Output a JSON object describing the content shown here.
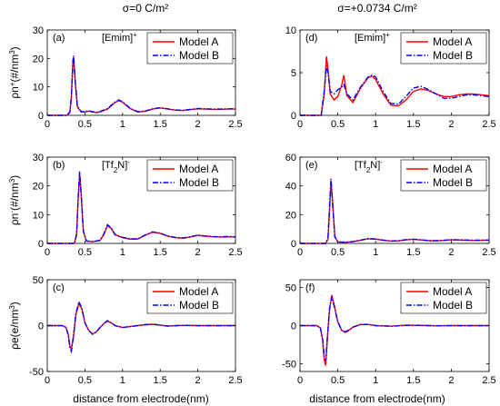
{
  "figure": {
    "column_titles": [
      "σ=0 C/m²",
      "σ=+0.0734 C/m²"
    ],
    "xlabel": "distance from electrode(nm)",
    "legend": [
      "Model A",
      "Model B"
    ],
    "colors": {
      "model_a": "#ff0000",
      "model_b": "#0000ff",
      "axes": "#000000"
    }
  },
  "chart_data": [
    {
      "type": "line",
      "panel": "(a)",
      "species": "[Emim]⁺",
      "ylabel": "ρn⁺(#/nm³)",
      "xlim": [
        0,
        2.5
      ],
      "ylim": [
        0,
        30
      ],
      "yticks": [
        0,
        10,
        20,
        30
      ],
      "xticks": [
        0,
        0.5,
        1,
        1.5,
        2,
        2.5
      ],
      "grid": false,
      "legend_position": "top-right",
      "series": [
        {
          "name": "Model A",
          "style": "solid",
          "x": [
            0,
            0.26,
            0.3,
            0.32,
            0.34,
            0.35,
            0.37,
            0.4,
            0.45,
            0.5,
            0.55,
            0.6,
            0.65,
            0.7,
            0.8,
            0.9,
            0.95,
            1.0,
            1.1,
            1.2,
            1.3,
            1.4,
            1.5,
            1.6,
            1.7,
            1.8,
            1.9,
            2.0,
            2.1,
            2.2,
            2.3,
            2.4,
            2.5
          ],
          "y": [
            0,
            0,
            1,
            6,
            18,
            20.5,
            12,
            3,
            1.2,
            1.2,
            1.5,
            1.2,
            1.0,
            1.2,
            2.2,
            4.5,
            5.2,
            4.6,
            2.4,
            1.2,
            1.4,
            2.2,
            2.6,
            2.2,
            1.8,
            1.7,
            2.0,
            2.3,
            2.2,
            2.1,
            2.1,
            2.2,
            2.2
          ]
        },
        {
          "name": "Model B",
          "style": "dash-dot",
          "x": [
            0,
            0.26,
            0.3,
            0.32,
            0.34,
            0.35,
            0.37,
            0.4,
            0.45,
            0.5,
            0.55,
            0.6,
            0.65,
            0.7,
            0.8,
            0.9,
            0.95,
            1.0,
            1.1,
            1.2,
            1.3,
            1.4,
            1.5,
            1.6,
            1.7,
            1.8,
            1.9,
            2.0,
            2.1,
            2.2,
            2.3,
            2.4,
            2.5
          ],
          "y": [
            0,
            0,
            1.2,
            7,
            19,
            21,
            12.5,
            3.2,
            1.3,
            1.3,
            1.6,
            1.3,
            1.1,
            1.3,
            2.4,
            4.7,
            5.4,
            4.8,
            2.5,
            1.3,
            1.5,
            2.3,
            2.7,
            2.3,
            1.9,
            1.8,
            2.1,
            2.4,
            2.3,
            2.2,
            2.2,
            2.3,
            2.3
          ]
        }
      ]
    },
    {
      "type": "line",
      "panel": "(d)",
      "species": "[Emim]⁺",
      "ylabel": "",
      "xlim": [
        0,
        2.5
      ],
      "ylim": [
        0,
        10
      ],
      "yticks": [
        0,
        5,
        10
      ],
      "xticks": [
        0,
        0.5,
        1,
        1.5,
        2,
        2.5
      ],
      "grid": false,
      "legend_position": "top-right",
      "series": [
        {
          "name": "Model A",
          "style": "solid",
          "x": [
            0,
            0.28,
            0.32,
            0.35,
            0.37,
            0.4,
            0.45,
            0.5,
            0.55,
            0.58,
            0.62,
            0.7,
            0.8,
            0.9,
            0.95,
            1.0,
            1.1,
            1.2,
            1.3,
            1.4,
            1.5,
            1.6,
            1.7,
            1.8,
            1.9,
            2.0,
            2.1,
            2.2,
            2.3,
            2.4,
            2.5
          ],
          "y": [
            0,
            0,
            2.5,
            6.9,
            5.5,
            2.5,
            1.8,
            2.2,
            3.5,
            4.7,
            2.3,
            1.5,
            3.2,
            4.4,
            4.6,
            4.2,
            2.5,
            1.2,
            1.1,
            1.8,
            2.8,
            3.1,
            2.9,
            2.5,
            2.2,
            2.2,
            2.4,
            2.5,
            2.5,
            2.4,
            2.3
          ]
        },
        {
          "name": "Model B",
          "style": "dash-dot",
          "x": [
            0,
            0.28,
            0.32,
            0.35,
            0.37,
            0.4,
            0.45,
            0.5,
            0.55,
            0.58,
            0.62,
            0.7,
            0.8,
            0.9,
            0.95,
            1.0,
            1.1,
            1.2,
            1.3,
            1.4,
            1.5,
            1.6,
            1.7,
            1.8,
            1.9,
            2.0,
            2.1,
            2.2,
            2.3,
            2.4,
            2.5
          ],
          "y": [
            0,
            0,
            2.8,
            5.8,
            5.0,
            2.8,
            2.5,
            3.0,
            3.3,
            3.6,
            2.5,
            1.8,
            3.3,
            4.5,
            4.7,
            4.5,
            2.8,
            1.4,
            1.3,
            2.2,
            3.2,
            3.4,
            3.0,
            2.5,
            2.0,
            2.0,
            2.2,
            2.4,
            2.4,
            2.3,
            2.2
          ]
        }
      ]
    },
    {
      "type": "line",
      "panel": "(b)",
      "species": "[Tf₂N]⁻",
      "ylabel": "ρn⁻(#/nm³)",
      "xlim": [
        0,
        2.5
      ],
      "ylim": [
        0,
        30
      ],
      "yticks": [
        0,
        10,
        20,
        30
      ],
      "xticks": [
        0,
        0.5,
        1,
        1.5,
        2,
        2.5
      ],
      "grid": false,
      "legend_position": "top-right",
      "series": [
        {
          "name": "Model A",
          "style": "solid",
          "x": [
            0,
            0.36,
            0.39,
            0.41,
            0.43,
            0.45,
            0.48,
            0.52,
            0.6,
            0.7,
            0.75,
            0.8,
            0.85,
            0.9,
            1.0,
            1.1,
            1.2,
            1.3,
            1.4,
            1.5,
            1.6,
            1.7,
            1.8,
            1.9,
            2.0,
            2.1,
            2.2,
            2.3,
            2.4,
            2.5
          ],
          "y": [
            0,
            0,
            3,
            15,
            24,
            17,
            4,
            0.8,
            0.6,
            1.0,
            3.0,
            6.2,
            5.2,
            3.0,
            2.0,
            1.5,
            1.5,
            2.8,
            3.9,
            3.5,
            2.5,
            2.0,
            1.8,
            2.2,
            2.8,
            2.5,
            2.3,
            2.2,
            2.3,
            2.2
          ]
        },
        {
          "name": "Model B",
          "style": "dash-dot",
          "x": [
            0,
            0.36,
            0.39,
            0.41,
            0.43,
            0.45,
            0.48,
            0.52,
            0.6,
            0.7,
            0.75,
            0.8,
            0.85,
            0.9,
            1.0,
            1.1,
            1.2,
            1.3,
            1.4,
            1.5,
            1.6,
            1.7,
            1.8,
            1.9,
            2.0,
            2.1,
            2.2,
            2.3,
            2.4,
            2.5
          ],
          "y": [
            0,
            0,
            3.5,
            16,
            25,
            17.5,
            4.2,
            0.9,
            0.6,
            1.1,
            3.2,
            6.5,
            5.4,
            3.1,
            2.1,
            1.6,
            1.6,
            2.9,
            4.0,
            3.6,
            2.6,
            2.1,
            1.9,
            2.3,
            2.9,
            2.6,
            2.4,
            2.3,
            2.4,
            2.3
          ]
        }
      ]
    },
    {
      "type": "line",
      "panel": "(e)",
      "species": "[Tf₂N]⁻",
      "ylabel": "",
      "xlim": [
        0,
        2.5
      ],
      "ylim": [
        0,
        60
      ],
      "yticks": [
        0,
        20,
        40,
        60
      ],
      "xticks": [
        0,
        0.5,
        1,
        1.5,
        2,
        2.5
      ],
      "grid": false,
      "legend_position": "top-right",
      "series": [
        {
          "name": "Model A",
          "style": "solid",
          "x": [
            0,
            0.34,
            0.37,
            0.39,
            0.41,
            0.43,
            0.46,
            0.5,
            0.6,
            0.7,
            0.8,
            0.9,
            1.0,
            1.1,
            1.2,
            1.3,
            1.4,
            1.5,
            1.6,
            1.7,
            1.8,
            1.9,
            2.0,
            2.1,
            2.2,
            2.3,
            2.4,
            2.5
          ],
          "y": [
            0,
            0,
            3,
            22,
            43,
            30,
            5,
            1.0,
            0.8,
            1.2,
            2.2,
            3.2,
            3.0,
            2.2,
            1.6,
            1.8,
            2.5,
            2.8,
            2.4,
            1.9,
            1.8,
            2.1,
            2.5,
            2.4,
            2.2,
            2.1,
            2.2,
            2.2
          ]
        },
        {
          "name": "Model B",
          "style": "dash-dot",
          "x": [
            0,
            0.34,
            0.37,
            0.39,
            0.41,
            0.43,
            0.46,
            0.5,
            0.6,
            0.7,
            0.8,
            0.9,
            1.0,
            1.1,
            1.2,
            1.3,
            1.4,
            1.5,
            1.6,
            1.7,
            1.8,
            1.9,
            2.0,
            2.1,
            2.2,
            2.3,
            2.4,
            2.5
          ],
          "y": [
            0,
            0,
            4,
            25,
            45,
            28,
            4.5,
            1.0,
            0.8,
            1.3,
            2.3,
            3.3,
            3.1,
            2.3,
            1.7,
            1.9,
            2.6,
            2.9,
            2.5,
            2.0,
            1.9,
            2.2,
            2.6,
            2.5,
            2.3,
            2.2,
            2.3,
            2.3
          ]
        }
      ]
    },
    {
      "type": "line",
      "panel": "(c)",
      "species": "",
      "ylabel": "ρe(e/nm³)",
      "xlim": [
        0,
        2.5
      ],
      "ylim": [
        -50,
        50
      ],
      "yticks": [
        -50,
        0,
        50
      ],
      "xticks": [
        0,
        0.5,
        1,
        1.5,
        2,
        2.5
      ],
      "grid": false,
      "legend_position": "top-right",
      "series": [
        {
          "name": "Model A",
          "style": "solid",
          "x": [
            0,
            0.2,
            0.25,
            0.28,
            0.3,
            0.32,
            0.35,
            0.38,
            0.42,
            0.46,
            0.5,
            0.55,
            0.6,
            0.65,
            0.7,
            0.75,
            0.8,
            0.85,
            0.9,
            1.0,
            1.1,
            1.2,
            1.3,
            1.4,
            1.5,
            1.6,
            1.8,
            2.0,
            2.2,
            2.5
          ],
          "y": [
            0,
            0,
            -2,
            -10,
            -22,
            -26,
            -10,
            12,
            24,
            18,
            3,
            -5,
            -9,
            -7,
            -2,
            2,
            5,
            3,
            0,
            -2,
            -1,
            0,
            1,
            1.5,
            0.5,
            -0.5,
            0.3,
            0,
            0,
            0
          ]
        },
        {
          "name": "Model B",
          "style": "dash-dot",
          "x": [
            0,
            0.2,
            0.25,
            0.28,
            0.3,
            0.32,
            0.35,
            0.38,
            0.42,
            0.46,
            0.5,
            0.55,
            0.6,
            0.65,
            0.7,
            0.75,
            0.8,
            0.85,
            0.9,
            1.0,
            1.1,
            1.2,
            1.3,
            1.4,
            1.5,
            1.6,
            1.8,
            2.0,
            2.2,
            2.5
          ],
          "y": [
            0,
            0,
            -2,
            -11,
            -24,
            -28,
            -11,
            13,
            26,
            19,
            3,
            -5,
            -9.5,
            -7,
            -2,
            2,
            5.5,
            3,
            0,
            -2,
            -1,
            0,
            1,
            1.5,
            0.5,
            -0.5,
            0.3,
            0,
            0,
            0
          ]
        }
      ]
    },
    {
      "type": "line",
      "panel": "(f)",
      "species": "",
      "ylabel": "",
      "xlim": [
        0,
        2.5
      ],
      "ylim": [
        -60,
        60
      ],
      "yticks": [
        -50,
        0,
        50
      ],
      "xticks": [
        0,
        0.5,
        1,
        1.5,
        2,
        2.5
      ],
      "grid": false,
      "legend_position": "top-right",
      "series": [
        {
          "name": "Model A",
          "style": "solid",
          "x": [
            0,
            0.22,
            0.27,
            0.3,
            0.32,
            0.34,
            0.36,
            0.39,
            0.42,
            0.45,
            0.5,
            0.55,
            0.6,
            0.65,
            0.7,
            0.8,
            0.9,
            1.0,
            1.2,
            1.4,
            1.6,
            1.8,
            2.0,
            2.2,
            2.5
          ],
          "y": [
            0,
            0,
            -3,
            -20,
            -45,
            -52,
            -20,
            20,
            40,
            28,
            5,
            -6,
            -9,
            -6,
            -2,
            1.5,
            1.5,
            0,
            -0.8,
            0.5,
            0.3,
            -0.2,
            0,
            0,
            0
          ]
        },
        {
          "name": "Model B",
          "style": "dash-dot",
          "x": [
            0,
            0.22,
            0.27,
            0.3,
            0.32,
            0.34,
            0.36,
            0.39,
            0.42,
            0.45,
            0.5,
            0.55,
            0.6,
            0.65,
            0.7,
            0.8,
            0.9,
            1.0,
            1.2,
            1.4,
            1.6,
            1.8,
            2.0,
            2.2,
            2.5
          ],
          "y": [
            0,
            0,
            -3,
            -18,
            -40,
            -46,
            -18,
            22,
            38,
            26,
            5,
            -6,
            -8,
            -5.5,
            -2,
            1.5,
            1.5,
            0,
            -0.8,
            0.5,
            0.3,
            -0.2,
            0,
            0,
            0
          ]
        }
      ]
    }
  ]
}
